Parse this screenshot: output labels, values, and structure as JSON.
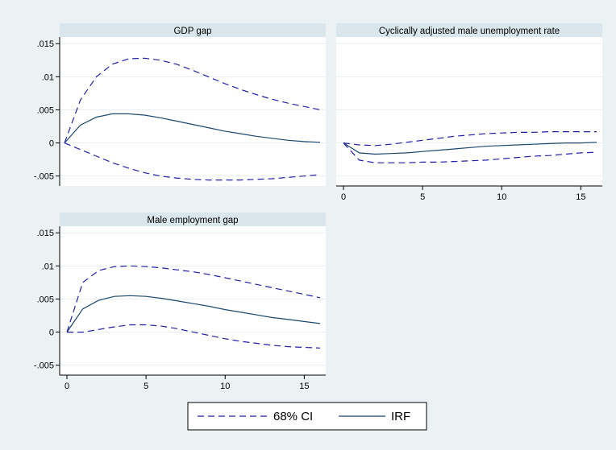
{
  "chart_data": [
    {
      "type": "line",
      "title": "GDP gap",
      "x": [
        0,
        1,
        2,
        3,
        4,
        5,
        6,
        7,
        8,
        9,
        10,
        11,
        12,
        13,
        14,
        15,
        16
      ],
      "xlim": [
        0,
        16
      ],
      "ylim": [
        -0.0065,
        0.016
      ],
      "yticks": [
        -0.005,
        0,
        0.005,
        0.01,
        0.015
      ],
      "ytick_labels": [
        "-.005",
        "0",
        ".005",
        ".01",
        ".015"
      ],
      "xticks": [],
      "xtick_labels": [],
      "grid": true,
      "series": [
        {
          "name": "IRF",
          "style": "solid",
          "values": [
            0,
            0.0027,
            0.0039,
            0.0044,
            0.0044,
            0.0042,
            0.0038,
            0.0033,
            0.0028,
            0.0023,
            0.0018,
            0.0014,
            0.001,
            0.0007,
            0.0004,
            0.0002,
            0.0001
          ]
        },
        {
          "name": "68% CI",
          "style": "dashed",
          "values": [
            0,
            0.0065,
            0.01,
            0.0119,
            0.0127,
            0.0128,
            0.0125,
            0.0119,
            0.011,
            0.01,
            0.009,
            0.0081,
            0.0073,
            0.0066,
            0.006,
            0.0055,
            0.005
          ]
        },
        {
          "name": "68% CI",
          "style": "dashed",
          "values": [
            0,
            -0.001,
            -0.002,
            -0.003,
            -0.0038,
            -0.0045,
            -0.005,
            -0.0053,
            -0.0055,
            -0.0056,
            -0.0056,
            -0.0056,
            -0.0055,
            -0.0054,
            -0.0052,
            -0.005,
            -0.0048
          ]
        }
      ]
    },
    {
      "type": "line",
      "title": "Cyclically adjusted male unemployment rate",
      "x": [
        0,
        1,
        2,
        3,
        4,
        5,
        6,
        7,
        8,
        9,
        10,
        11,
        12,
        13,
        14,
        15,
        16
      ],
      "xlim": [
        0,
        16
      ],
      "ylim": [
        -0.0065,
        0.016
      ],
      "yticks": [
        -0.005,
        0,
        0.005,
        0.01,
        0.015
      ],
      "ytick_labels": [],
      "xticks": [
        0,
        5,
        10,
        15
      ],
      "xtick_labels": [
        "0",
        "5",
        "10",
        "15"
      ],
      "grid": true,
      "series": [
        {
          "name": "IRF",
          "style": "solid",
          "values": [
            0,
            -0.0015,
            -0.0017,
            -0.0016,
            -0.0015,
            -0.0013,
            -0.0011,
            -0.0009,
            -0.0007,
            -0.0005,
            -0.0004,
            -0.0003,
            -0.0002,
            -0.0001,
            0.0,
            0.0,
            0.0001
          ]
        },
        {
          "name": "68% CI",
          "style": "dashed",
          "values": [
            0,
            -0.0003,
            -0.0004,
            -0.0002,
            0.0001,
            0.0004,
            0.0007,
            0.001,
            0.0012,
            0.0014,
            0.0015,
            0.0016,
            0.0016,
            0.0017,
            0.0017,
            0.0017,
            0.0017
          ]
        },
        {
          "name": "68% CI",
          "style": "dashed",
          "values": [
            0,
            -0.0026,
            -0.003,
            -0.003,
            -0.003,
            -0.0029,
            -0.0029,
            -0.0028,
            -0.0027,
            -0.0026,
            -0.0024,
            -0.0022,
            -0.002,
            -0.0019,
            -0.0017,
            -0.0015,
            -0.0014
          ]
        }
      ]
    },
    {
      "type": "line",
      "title": "Male employment gap",
      "x": [
        0,
        1,
        2,
        3,
        4,
        5,
        6,
        7,
        8,
        9,
        10,
        11,
        12,
        13,
        14,
        15,
        16
      ],
      "xlim": [
        0,
        16
      ],
      "ylim": [
        -0.0065,
        0.016
      ],
      "yticks": [
        -0.005,
        0,
        0.005,
        0.01,
        0.015
      ],
      "ytick_labels": [
        "-.005",
        "0",
        ".005",
        ".01",
        ".015"
      ],
      "xticks": [
        0,
        5,
        10,
        15
      ],
      "xtick_labels": [
        "0",
        "5",
        "10",
        "15"
      ],
      "grid": true,
      "series": [
        {
          "name": "IRF",
          "style": "solid",
          "values": [
            0,
            0.0035,
            0.0048,
            0.0054,
            0.0055,
            0.0054,
            0.0051,
            0.0047,
            0.0043,
            0.0039,
            0.0034,
            0.003,
            0.0026,
            0.0022,
            0.0019,
            0.0016,
            0.0013
          ]
        },
        {
          "name": "68% CI",
          "style": "dashed",
          "values": [
            0,
            0.0075,
            0.0093,
            0.0099,
            0.01,
            0.0099,
            0.0097,
            0.0094,
            0.0091,
            0.0087,
            0.0082,
            0.0077,
            0.0072,
            0.0067,
            0.0062,
            0.0057,
            0.0052
          ]
        },
        {
          "name": "68% CI",
          "style": "dashed",
          "values": [
            0,
            0.0,
            0.0004,
            0.0008,
            0.0011,
            0.0011,
            0.0009,
            0.0005,
            0.0,
            -0.0005,
            -0.001,
            -0.0014,
            -0.0017,
            -0.002,
            -0.0022,
            -0.0023,
            -0.0024
          ]
        }
      ]
    }
  ],
  "legend": {
    "position": "bottom",
    "items": [
      {
        "label": "68% CI",
        "style": "dashed"
      },
      {
        "label": "IRF",
        "style": "solid"
      }
    ]
  },
  "colors": {
    "background": "#eaf2f3",
    "plot_area": "#ffffff",
    "title_strip": "#d9e6eb",
    "line": "#1a476f",
    "ci": "#1f1fa8",
    "grid": "#e8eef0"
  }
}
